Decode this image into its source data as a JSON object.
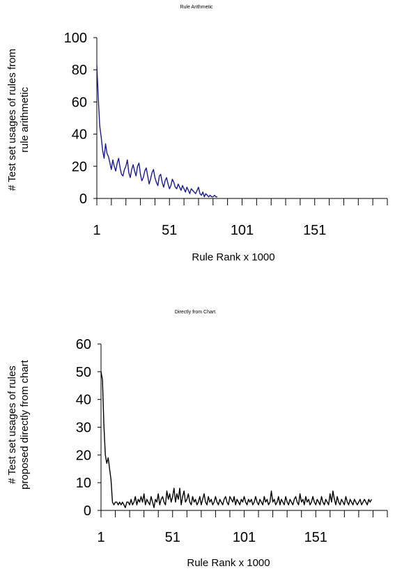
{
  "chart_data": [
    {
      "type": "line",
      "title": "Rule Arithmetic",
      "xlabel": "Rule Rank x 1000",
      "ylabel_lines": [
        "# Test set usages of rules from",
        "rule arithmetic"
      ],
      "xlim": [
        1,
        201
      ],
      "ylim": [
        0,
        100
      ],
      "xticks": [
        1,
        51,
        101,
        151
      ],
      "yticks": [
        0,
        20,
        40,
        60,
        80,
        100
      ],
      "color": "#1b1b8f",
      "series": [
        {
          "x": [
            1,
            2,
            3,
            4,
            5,
            6,
            7,
            8,
            9,
            10,
            11,
            12,
            13,
            14,
            15,
            16,
            17,
            18,
            19,
            20,
            21,
            22,
            23,
            24,
            25,
            26,
            27,
            28,
            29,
            30,
            31,
            32,
            33,
            34,
            35,
            36,
            37,
            38,
            39,
            40,
            41,
            42,
            43,
            44,
            45,
            46,
            47,
            48,
            49,
            50,
            51,
            52,
            53,
            54,
            55,
            56,
            57,
            58,
            59,
            60,
            61,
            62,
            63,
            64,
            65,
            66,
            67,
            68,
            69,
            70,
            71,
            72,
            73,
            74,
            75,
            76,
            77,
            78,
            79,
            80,
            81,
            82,
            83,
            84
          ],
          "y": [
            83,
            62,
            45,
            38,
            30,
            25,
            34,
            28,
            26,
            22,
            18,
            24,
            20,
            17,
            22,
            25,
            19,
            15,
            14,
            18,
            20,
            24,
            16,
            13,
            18,
            21,
            17,
            14,
            20,
            22,
            15,
            11,
            13,
            17,
            19,
            14,
            9,
            12,
            16,
            18,
            13,
            10,
            8,
            14,
            15,
            10,
            7,
            11,
            13,
            9,
            6,
            8,
            12,
            10,
            7,
            6,
            9,
            7,
            5,
            8,
            6,
            4,
            7,
            5,
            3,
            6,
            5,
            4,
            3,
            5,
            7,
            3,
            2,
            4,
            1,
            3,
            2,
            1,
            2,
            1,
            1,
            2,
            1,
            1
          ]
        }
      ]
    },
    {
      "type": "line",
      "title": "Directly from Chart",
      "xlabel": "Rule Rank x 1000",
      "ylabel_lines": [
        "# Test set usages of rules",
        "proposed directly from chart"
      ],
      "xlim": [
        1,
        201
      ],
      "ylim": [
        0,
        60
      ],
      "xticks": [
        1,
        51,
        101,
        151
      ],
      "yticks": [
        0,
        10,
        20,
        30,
        40,
        50,
        60
      ],
      "color": "#000000",
      "series": [
        {
          "x": [
            1,
            2,
            3,
            4,
            5,
            6,
            7,
            8,
            9,
            10,
            11,
            12,
            13,
            14,
            15,
            16,
            17,
            18,
            19,
            20,
            21,
            22,
            23,
            24,
            25,
            26,
            27,
            28,
            29,
            30,
            31,
            32,
            33,
            34,
            35,
            36,
            37,
            38,
            39,
            40,
            41,
            42,
            43,
            44,
            45,
            46,
            47,
            48,
            49,
            50,
            51,
            52,
            53,
            54,
            55,
            56,
            57,
            58,
            59,
            60,
            61,
            62,
            63,
            64,
            65,
            66,
            67,
            68,
            69,
            70,
            71,
            72,
            73,
            74,
            75,
            76,
            77,
            78,
            79,
            80,
            81,
            82,
            83,
            84,
            85,
            86,
            87,
            88,
            89,
            90,
            91,
            92,
            93,
            94,
            95,
            96,
            97,
            98,
            99,
            100,
            101,
            102,
            103,
            104,
            105,
            106,
            107,
            108,
            109,
            110,
            111,
            112,
            113,
            114,
            115,
            116,
            117,
            118,
            119,
            120,
            121,
            122,
            123,
            124,
            125,
            126,
            127,
            128,
            129,
            130,
            131,
            132,
            133,
            134,
            135,
            136,
            137,
            138,
            139,
            140,
            141,
            142,
            143,
            144,
            145,
            146,
            147,
            148,
            149,
            150,
            151,
            152,
            153,
            154,
            155,
            156,
            157,
            158,
            159,
            160,
            161,
            162,
            163,
            164,
            165,
            166,
            167,
            168,
            169,
            170,
            171,
            172,
            173,
            174,
            175,
            176,
            177,
            178,
            179,
            180,
            181,
            182,
            183,
            184,
            185,
            186,
            187,
            188,
            189,
            190
          ],
          "y": [
            50,
            47,
            31,
            20,
            17,
            19,
            15,
            11,
            3,
            2,
            3,
            3,
            2,
            3,
            2,
            3,
            2,
            1,
            3,
            3,
            2,
            4,
            2,
            3,
            5,
            2,
            4,
            3,
            5,
            3,
            6,
            2,
            4,
            3,
            2,
            5,
            3,
            1,
            4,
            3,
            6,
            2,
            4,
            5,
            3,
            2,
            7,
            4,
            6,
            3,
            5,
            8,
            3,
            6,
            4,
            8,
            2,
            5,
            7,
            3,
            4,
            6,
            3,
            2,
            5,
            3,
            4,
            2,
            3,
            5,
            2,
            4,
            6,
            3,
            2,
            5,
            3,
            4,
            2,
            3,
            5,
            3,
            2,
            4,
            3,
            2,
            4,
            5,
            3,
            2,
            5,
            4,
            3,
            5,
            2,
            4,
            3,
            2,
            4,
            3,
            5,
            3,
            2,
            4,
            3,
            4,
            2,
            3,
            5,
            3,
            2,
            4,
            3,
            2,
            5,
            3,
            4,
            2,
            3,
            7,
            3,
            4,
            2,
            3,
            5,
            2,
            4,
            3,
            2,
            5,
            3,
            2,
            4,
            3,
            2,
            4,
            5,
            3,
            2,
            6,
            3,
            4,
            2,
            5,
            3,
            4,
            2,
            3,
            5,
            3,
            2,
            4,
            3,
            2,
            5,
            3,
            2,
            4,
            3,
            2,
            6,
            3,
            7,
            4,
            2,
            5,
            3,
            2,
            4,
            3,
            2,
            5,
            3,
            2,
            4,
            3,
            2,
            4,
            3,
            2,
            3,
            4,
            2,
            3,
            4,
            3,
            2,
            4,
            3,
            4
          ]
        }
      ]
    }
  ]
}
